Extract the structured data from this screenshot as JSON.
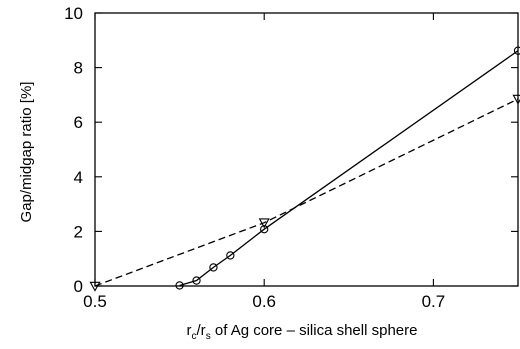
{
  "chart_data": {
    "type": "line",
    "title": "",
    "xlabel": {
      "r": "r",
      "c": "c",
      "slash": "/r",
      "s": "s",
      "rest": " of Ag core – silica shell sphere"
    },
    "ylabel": "Gap/midgap ratio [%]",
    "xlim": [
      0.5,
      0.75
    ],
    "ylim": [
      0,
      10
    ],
    "xticks": [
      0.5,
      0.6,
      0.7
    ],
    "xtick_labels": [
      "0.5",
      "0.6",
      "0.7"
    ],
    "yticks": [
      0,
      2,
      4,
      6,
      8,
      10
    ],
    "ytick_labels": [
      "0",
      "2",
      "4",
      "6",
      "8",
      "10"
    ],
    "grid": false,
    "legend": "none",
    "series": [
      {
        "line_style": "solid",
        "marker": "circle",
        "color": "#000000",
        "x": [
          0.55,
          0.56,
          0.57,
          0.58,
          0.6,
          0.75
        ],
        "y": [
          0.02,
          0.2,
          0.68,
          1.12,
          2.08,
          8.62
        ]
      },
      {
        "line_style": "dashed",
        "marker": "triangle-down",
        "color": "#000000",
        "x": [
          0.5,
          0.6,
          0.75
        ],
        "y": [
          0.0,
          2.32,
          6.85
        ]
      }
    ]
  }
}
